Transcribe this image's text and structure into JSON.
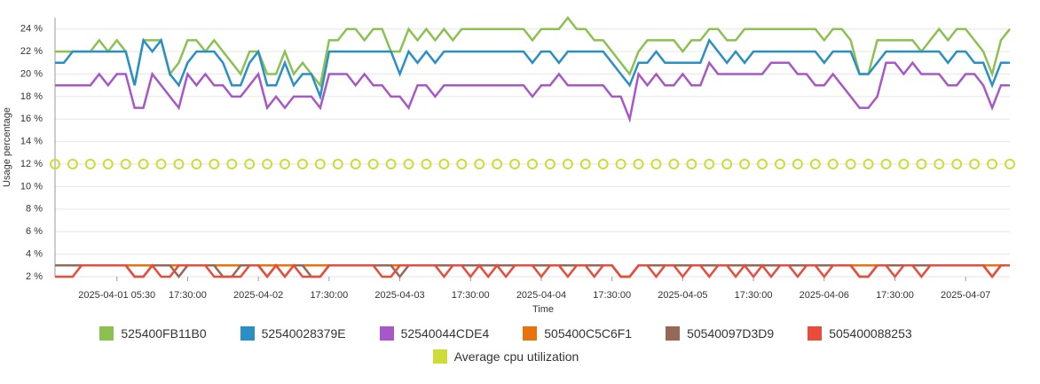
{
  "chart_data": {
    "type": "line",
    "x_label": "Time",
    "y_label": "Usage percentage",
    "xlim": [
      0,
      162
    ],
    "ylim": [
      2,
      25
    ],
    "grid": true,
    "yticks": [
      {
        "value": 2,
        "label": "2 %"
      },
      {
        "value": 4,
        "label": "4 %"
      },
      {
        "value": 6,
        "label": "6 %"
      },
      {
        "value": 8,
        "label": "8 %"
      },
      {
        "value": 10,
        "label": "10 %"
      },
      {
        "value": 12,
        "label": "12 %"
      },
      {
        "value": 14,
        "label": "14 %"
      },
      {
        "value": 16,
        "label": "16 %"
      },
      {
        "value": 18,
        "label": "18 %"
      },
      {
        "value": 20,
        "label": "20 %"
      },
      {
        "value": 22,
        "label": "22 %"
      },
      {
        "value": 24,
        "label": "24 %"
      }
    ],
    "xticks": [
      {
        "value": 10.5,
        "label": "2025-04-01 05:30"
      },
      {
        "value": 22.5,
        "label": "17:30:00"
      },
      {
        "value": 34.5,
        "label": "2025-04-02"
      },
      {
        "value": 46.5,
        "label": "17:30:00"
      },
      {
        "value": 58.5,
        "label": "2025-04-03"
      },
      {
        "value": 70.5,
        "label": "17:30:00"
      },
      {
        "value": 82.5,
        "label": "2025-04-04"
      },
      {
        "value": 94.5,
        "label": "17:30:00"
      },
      {
        "value": 106.5,
        "label": "2025-04-05"
      },
      {
        "value": 118.5,
        "label": "17:30:00"
      },
      {
        "value": 130.5,
        "label": "2025-04-06"
      },
      {
        "value": 142.5,
        "label": "17:30:00"
      },
      {
        "value": 154.5,
        "label": "2025-04-07"
      }
    ],
    "x": [
      0,
      1.5,
      3,
      4.5,
      6,
      7.5,
      9,
      10.5,
      12,
      13.5,
      15,
      16.5,
      18,
      19.5,
      21,
      22.5,
      24,
      25.5,
      27,
      28.5,
      30,
      31.5,
      33,
      34.5,
      36,
      37.5,
      39,
      40.5,
      42,
      43.5,
      45,
      46.5,
      48,
      49.5,
      51,
      52.5,
      54,
      55.5,
      57,
      58.5,
      60,
      61.5,
      63,
      64.5,
      66,
      67.5,
      69,
      70.5,
      72,
      73.5,
      75,
      76.5,
      78,
      79.5,
      81,
      82.5,
      84,
      85.5,
      87,
      88.5,
      90,
      91.5,
      93,
      94.5,
      96,
      97.5,
      99,
      100.5,
      102,
      103.5,
      105,
      106.5,
      108,
      109.5,
      111,
      112.5,
      114,
      115.5,
      117,
      118.5,
      120,
      121.5,
      123,
      124.5,
      126,
      127.5,
      129,
      130.5,
      132,
      133.5,
      135,
      136.5,
      138,
      139.5,
      141,
      142.5,
      144,
      145.5,
      147,
      148.5,
      150,
      151.5,
      153,
      154.5,
      156,
      157.5,
      159,
      160.5,
      162
    ],
    "series": [
      {
        "name": "525400FB11B0",
        "color": "#8cc152",
        "style": "line",
        "values": [
          22,
          22,
          22,
          22,
          22,
          23,
          22,
          23,
          22,
          19,
          23,
          23,
          23,
          20,
          21,
          23,
          23,
          22,
          23,
          22,
          21,
          20,
          22,
          22,
          20,
          20,
          22,
          20,
          21,
          20,
          19,
          23,
          23,
          24,
          24,
          23,
          24,
          24,
          22,
          22,
          24,
          23,
          24,
          23,
          24,
          23,
          24,
          24,
          24,
          24,
          24,
          24,
          24,
          24,
          23,
          24,
          24,
          24,
          25,
          24,
          24,
          23,
          23,
          22,
          21,
          20,
          22,
          23,
          23,
          23,
          23,
          22,
          23,
          23,
          24,
          24,
          23,
          23,
          24,
          24,
          24,
          24,
          24,
          24,
          24,
          24,
          24,
          23,
          24,
          24,
          23,
          20,
          20,
          23,
          23,
          23,
          23,
          23,
          22,
          23,
          24,
          23,
          24,
          24,
          23,
          22,
          20,
          23,
          24
        ]
      },
      {
        "name": "52540028379E",
        "color": "#2a8fc4",
        "style": "line",
        "values": [
          21,
          21,
          22,
          22,
          22,
          22,
          22,
          22,
          22,
          19,
          23,
          22,
          23,
          20,
          19,
          21,
          22,
          22,
          22,
          21,
          19,
          19,
          21,
          22,
          19,
          19,
          21,
          19,
          20,
          20,
          18,
          22,
          22,
          22,
          22,
          22,
          22,
          22,
          22,
          20,
          22,
          21,
          22,
          21,
          22,
          22,
          22,
          22,
          22,
          22,
          22,
          22,
          22,
          22,
          21,
          22,
          22,
          21,
          22,
          22,
          22,
          22,
          22,
          21,
          20,
          19,
          21,
          21,
          22,
          21,
          21,
          21,
          21,
          21,
          23,
          22,
          21,
          22,
          21,
          22,
          22,
          22,
          22,
          22,
          22,
          22,
          22,
          21,
          22,
          22,
          22,
          20,
          20,
          21,
          22,
          22,
          22,
          22,
          22,
          22,
          22,
          21,
          22,
          22,
          21,
          21,
          19,
          21,
          21
        ]
      },
      {
        "name": "52540044CDE4",
        "color": "#a758c6",
        "style": "line",
        "values": [
          19,
          19,
          19,
          19,
          19,
          20,
          19,
          20,
          20,
          17,
          17,
          20,
          19,
          18,
          17,
          20,
          19,
          20,
          19,
          19,
          18,
          18,
          19,
          20,
          17,
          18,
          17,
          18,
          18,
          18,
          17,
          20,
          20,
          20,
          19,
          20,
          19,
          19,
          18,
          18,
          17,
          19,
          19,
          18,
          19,
          19,
          19,
          19,
          19,
          19,
          19,
          19,
          19,
          19,
          18,
          19,
          19,
          20,
          19,
          19,
          19,
          19,
          19,
          18,
          18,
          16,
          20,
          19,
          20,
          19,
          19,
          20,
          19,
          19,
          21,
          20,
          20,
          20,
          20,
          20,
          20,
          21,
          21,
          21,
          20,
          20,
          19,
          19,
          20,
          19,
          18,
          17,
          17,
          18,
          21,
          21,
          20,
          21,
          20,
          20,
          20,
          19,
          19,
          20,
          20,
          19,
          17,
          19,
          19
        ]
      },
      {
        "name": "505400C5C6F1",
        "color": "#e8720c",
        "style": "line",
        "values": [
          3,
          3,
          3,
          3,
          3,
          3,
          3,
          3,
          3,
          3,
          3,
          3,
          3,
          3,
          3,
          3,
          3,
          3,
          3,
          3,
          3,
          3,
          3,
          3,
          3,
          3,
          3,
          3,
          3,
          3,
          3,
          3,
          3,
          3,
          3,
          3,
          3,
          3,
          3,
          3,
          3,
          3,
          3,
          3,
          3,
          3,
          3,
          3,
          3,
          3,
          3,
          3,
          3,
          3,
          3,
          3,
          3,
          3,
          3,
          3,
          3,
          3,
          3,
          3,
          2,
          2,
          3,
          3,
          3,
          3,
          3,
          3,
          3,
          3,
          3,
          3,
          3,
          3,
          3,
          3,
          3,
          3,
          3,
          3,
          3,
          3,
          3,
          3,
          3,
          3,
          3,
          3,
          3,
          3,
          3,
          3,
          3,
          3,
          3,
          3,
          3,
          3,
          3,
          3,
          3,
          3,
          3,
          3,
          3
        ]
      },
      {
        "name": "50540097D3D9",
        "color": "#96685a",
        "style": "line",
        "values": [
          3,
          3,
          3,
          3,
          3,
          3,
          3,
          3,
          3,
          2,
          2,
          3,
          3,
          3,
          2,
          3,
          3,
          3,
          3,
          2,
          2,
          3,
          3,
          3,
          2,
          3,
          2,
          3,
          3,
          2,
          2,
          3,
          3,
          3,
          3,
          3,
          3,
          3,
          3,
          2,
          3,
          3,
          3,
          3,
          3,
          3,
          3,
          3,
          3,
          3,
          3,
          3,
          3,
          3,
          3,
          3,
          3,
          3,
          3,
          3,
          3,
          3,
          3,
          3,
          2,
          2,
          3,
          3,
          3,
          3,
          3,
          3,
          3,
          3,
          3,
          3,
          3,
          3,
          3,
          3,
          3,
          3,
          3,
          3,
          3,
          3,
          3,
          3,
          3,
          3,
          3,
          2,
          2,
          3,
          3,
          3,
          3,
          3,
          3,
          3,
          3,
          3,
          3,
          3,
          3,
          3,
          2,
          3,
          3
        ]
      },
      {
        "name": "505400088253",
        "color": "#e74c3c",
        "style": "line",
        "values": [
          2,
          2,
          2,
          3,
          3,
          3,
          3,
          3,
          3,
          2,
          2,
          3,
          2,
          2,
          3,
          3,
          3,
          3,
          2,
          2,
          2,
          2,
          3,
          3,
          2,
          3,
          2,
          3,
          2,
          2,
          2,
          3,
          3,
          3,
          3,
          3,
          3,
          2,
          2,
          3,
          3,
          3,
          3,
          3,
          2,
          3,
          3,
          2,
          3,
          2,
          3,
          2,
          3,
          3,
          3,
          2,
          3,
          3,
          2,
          3,
          3,
          2,
          3,
          3,
          2,
          2,
          3,
          3,
          2,
          3,
          3,
          2,
          3,
          3,
          2,
          3,
          3,
          2,
          3,
          2,
          3,
          2,
          3,
          3,
          2,
          3,
          3,
          2,
          3,
          3,
          3,
          2,
          2,
          3,
          3,
          2,
          3,
          3,
          2,
          3,
          3,
          3,
          3,
          3,
          3,
          3,
          2,
          3,
          3
        ]
      },
      {
        "name": "Average cpu utilization",
        "color": "#cddc39",
        "style": "markers",
        "values": [
          12,
          null,
          12,
          null,
          12,
          null,
          12,
          null,
          12,
          null,
          12,
          null,
          12,
          null,
          12,
          null,
          12,
          null,
          12,
          null,
          12,
          null,
          12,
          null,
          12,
          null,
          12,
          null,
          12,
          null,
          12,
          null,
          12,
          null,
          12,
          null,
          12,
          null,
          12,
          null,
          12,
          null,
          12,
          null,
          12,
          null,
          12,
          null,
          12,
          null,
          12,
          null,
          12,
          null,
          12,
          null,
          12,
          null,
          12,
          null,
          12,
          null,
          12,
          null,
          12,
          null,
          12,
          null,
          12,
          null,
          12,
          null,
          12,
          null,
          12,
          null,
          12,
          null,
          12,
          null,
          12,
          null,
          12,
          null,
          12,
          null,
          12,
          null,
          12,
          null,
          12,
          null,
          12,
          null,
          12,
          null,
          12,
          null,
          12,
          null,
          12,
          null,
          12,
          null,
          12,
          null,
          12,
          null,
          12
        ]
      }
    ]
  }
}
